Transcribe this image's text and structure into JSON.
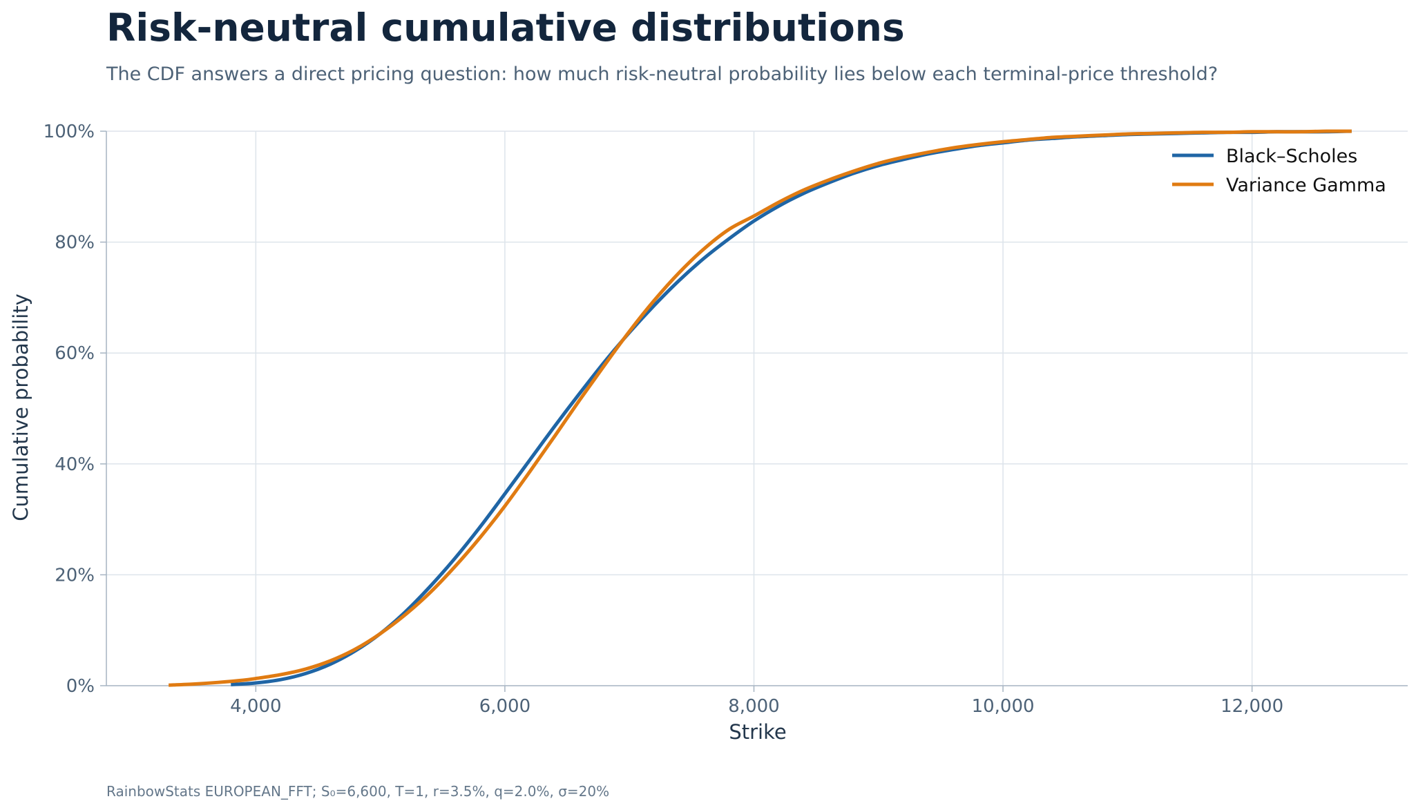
{
  "header": {
    "title": "Risk-neutral cumulative distributions",
    "subtitle": "The CDF answers a direct pricing question: how much risk-neutral probability lies below each terminal-price threshold?"
  },
  "footer": {
    "source": "RainbowStats EUROPEAN_FFT; S₀=6,600, T=1, r=3.5%, q=2.0%, σ=20%"
  },
  "colors": {
    "black_scholes": "#1f65a5",
    "variance_gamma": "#e07b12",
    "grid": "#dde4eb",
    "axis": "#a6b4c2"
  },
  "chart_data": {
    "type": "line",
    "title": "Risk-neutral cumulative distributions",
    "xlabel": "Strike",
    "ylabel": "Cumulative probability",
    "xlim": [
      2800,
      13250
    ],
    "ylim": [
      0,
      1
    ],
    "x_ticks": [
      4000,
      6000,
      8000,
      10000,
      12000
    ],
    "x_tick_labels": [
      "4,000",
      "6,000",
      "8,000",
      "10,000",
      "12,000"
    ],
    "y_ticks": [
      0,
      0.2,
      0.4,
      0.6,
      0.8,
      1.0
    ],
    "y_tick_labels": [
      "0%",
      "20%",
      "40%",
      "60%",
      "80%",
      "100%"
    ],
    "grid": true,
    "legend_position": "top-right",
    "series": [
      {
        "name": "Black–Scholes",
        "color": "#1f65a5",
        "x": [
          3800,
          4000,
          4200,
          4400,
          4600,
          4800,
          5000,
          5200,
          5400,
          5600,
          5800,
          6000,
          6200,
          6400,
          6600,
          6800,
          7000,
          7200,
          7400,
          7600,
          7800,
          8000,
          8200,
          8400,
          8600,
          8800,
          9000,
          9200,
          9400,
          9600,
          9800,
          10000,
          10200,
          10400,
          10600,
          10800,
          11000,
          11200,
          11400,
          11600,
          11800,
          12000,
          12200,
          12400,
          12600,
          12800
        ],
        "y": [
          0.002,
          0.005,
          0.011,
          0.022,
          0.039,
          0.063,
          0.094,
          0.133,
          0.179,
          0.23,
          0.286,
          0.346,
          0.407,
          0.468,
          0.527,
          0.584,
          0.637,
          0.686,
          0.731,
          0.771,
          0.806,
          0.838,
          0.865,
          0.888,
          0.907,
          0.924,
          0.938,
          0.949,
          0.959,
          0.967,
          0.974,
          0.979,
          0.984,
          0.987,
          0.99,
          0.992,
          0.994,
          0.995,
          0.996,
          0.997,
          0.998,
          0.998,
          0.999,
          0.999,
          0.999,
          1.0
        ]
      },
      {
        "name": "Variance Gamma",
        "color": "#e07b12",
        "x": [
          3300,
          3500,
          3700,
          3900,
          4000,
          4200,
          4400,
          4600,
          4800,
          5000,
          5200,
          5400,
          5600,
          5800,
          6000,
          6200,
          6400,
          6600,
          6800,
          7000,
          7200,
          7400,
          7600,
          7800,
          8000,
          8200,
          8400,
          8600,
          8800,
          9000,
          9200,
          9400,
          9600,
          9800,
          10000,
          10200,
          10400,
          10600,
          10800,
          11000,
          11200,
          11400,
          11600,
          11800,
          12000,
          12200,
          12400,
          12600,
          12800
        ],
        "y": [
          0.001,
          0.003,
          0.006,
          0.01,
          0.013,
          0.02,
          0.03,
          0.045,
          0.066,
          0.094,
          0.128,
          0.168,
          0.215,
          0.267,
          0.324,
          0.386,
          0.45,
          0.515,
          0.578,
          0.639,
          0.695,
          0.745,
          0.788,
          0.823,
          0.847,
          0.872,
          0.894,
          0.912,
          0.928,
          0.942,
          0.953,
          0.962,
          0.97,
          0.976,
          0.981,
          0.985,
          0.989,
          0.991,
          0.993,
          0.995,
          0.996,
          0.997,
          0.998,
          0.998,
          0.999,
          0.999,
          0.999,
          1.0,
          1.0
        ]
      }
    ]
  }
}
